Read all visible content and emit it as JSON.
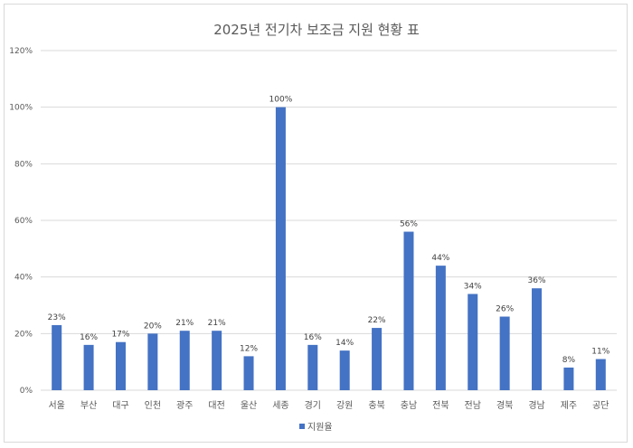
{
  "chart_data": {
    "type": "bar",
    "title": "2025년 전기차 보조금 지원 현황 표",
    "categories": [
      "서울",
      "부산",
      "대구",
      "인천",
      "광주",
      "대전",
      "울산",
      "세종",
      "경기",
      "강원",
      "충북",
      "충남",
      "전북",
      "전남",
      "경북",
      "경남",
      "제주",
      "공단"
    ],
    "series": [
      {
        "name": "지원율",
        "values": [
          23,
          16,
          17,
          20,
          21,
          21,
          12,
          100,
          16,
          14,
          22,
          56,
          44,
          34,
          26,
          36,
          8,
          11
        ],
        "labels": [
          "23%",
          "16%",
          "17%",
          "20%",
          "21%",
          "21%",
          "12%",
          "100%",
          "16%",
          "14%",
          "22%",
          "56%",
          "44%",
          "34%",
          "26%",
          "36%",
          "8%",
          "11%"
        ]
      }
    ],
    "y_ticks": [
      "0%",
      "20%",
      "40%",
      "60%",
      "80%",
      "100%",
      "120%"
    ],
    "ylim": [
      0,
      120
    ],
    "ylabel": "",
    "xlabel": "",
    "grid": true,
    "legend": "bottom",
    "colors": {
      "bar": "#4472C4",
      "grid": "#d9d9d9",
      "text": "#595959"
    }
  }
}
